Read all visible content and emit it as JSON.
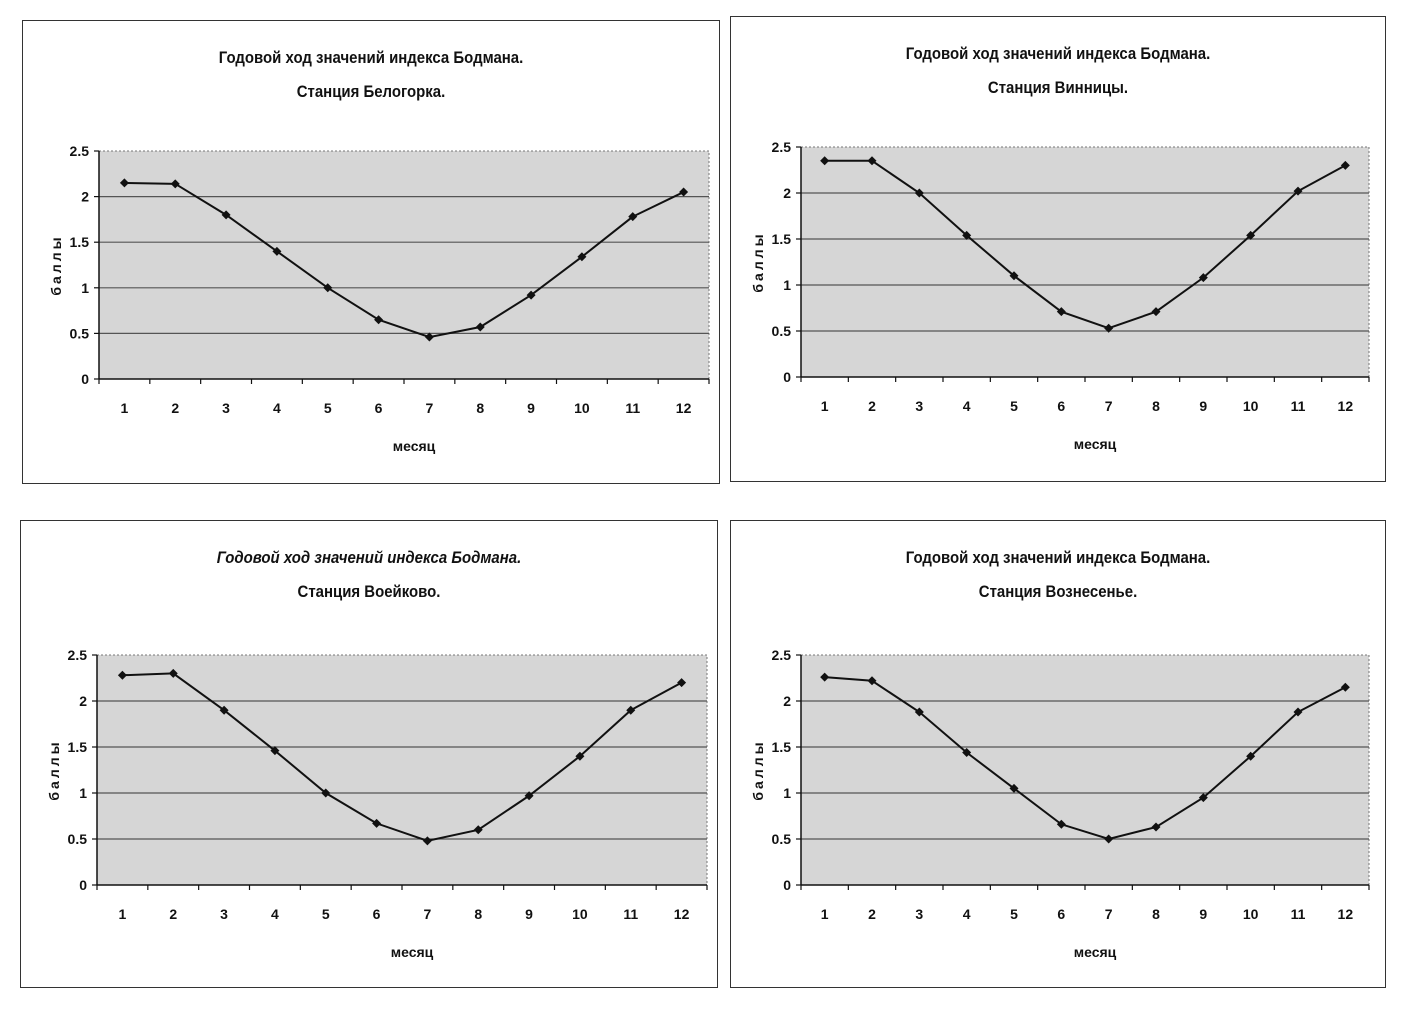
{
  "chart_data": [
    {
      "type": "line",
      "title": [
        "Годовой ход значений индекса Бодмана.",
        "Станция Белогорка."
      ],
      "xlabel": "месяц",
      "ylabel": "баллы",
      "categories": [
        "1",
        "2",
        "3",
        "4",
        "5",
        "6",
        "7",
        "8",
        "9",
        "10",
        "11",
        "12"
      ],
      "values": [
        2.15,
        2.14,
        1.8,
        1.4,
        1.0,
        0.65,
        0.46,
        0.57,
        0.92,
        1.34,
        1.78,
        2.05
      ],
      "yticks": [
        "0",
        "0.5",
        "1",
        "1.5",
        "2",
        "2.5"
      ],
      "ylim": [
        0,
        2.5
      ]
    },
    {
      "type": "line",
      "title": [
        "Годовой ход значений индекса Бодмана.",
        "Станция Винницы."
      ],
      "xlabel": "месяц",
      "ylabel": "баллы",
      "categories": [
        "1",
        "2",
        "3",
        "4",
        "5",
        "6",
        "7",
        "8",
        "9",
        "10",
        "11",
        "12"
      ],
      "values": [
        2.35,
        2.35,
        2.0,
        1.54,
        1.1,
        0.71,
        0.53,
        0.71,
        1.08,
        1.54,
        2.02,
        2.3
      ],
      "yticks": [
        "0",
        "0.5",
        "1",
        "1.5",
        "2",
        "2.5"
      ],
      "ylim": [
        0,
        2.5
      ]
    },
    {
      "type": "line",
      "title": [
        "Годовой ход значений индекса Бодмана.",
        "Станция Воейково."
      ],
      "xlabel": "месяц",
      "ylabel": "баллы",
      "categories": [
        "1",
        "2",
        "3",
        "4",
        "5",
        "6",
        "7",
        "8",
        "9",
        "10",
        "11",
        "12"
      ],
      "values": [
        2.28,
        2.3,
        1.9,
        1.46,
        1.0,
        0.67,
        0.48,
        0.6,
        0.97,
        1.4,
        1.9,
        2.2
      ],
      "yticks": [
        "0",
        "0.5",
        "1",
        "1.5",
        "2",
        "2.5"
      ],
      "ylim": [
        0,
        2.5
      ]
    },
    {
      "type": "line",
      "title": [
        "Годовой ход значений индекса Бодмана.",
        "Станция Вознесенье."
      ],
      "xlabel": "месяц",
      "ylabel": "баллы",
      "categories": [
        "1",
        "2",
        "3",
        "4",
        "5",
        "6",
        "7",
        "8",
        "9",
        "10",
        "11",
        "12"
      ],
      "values": [
        2.26,
        2.22,
        1.88,
        1.44,
        1.05,
        0.66,
        0.5,
        0.63,
        0.95,
        1.4,
        1.88,
        2.15
      ],
      "yticks": [
        "0",
        "0.5",
        "1",
        "1.5",
        "2",
        "2.5"
      ],
      "ylim": [
        0,
        2.5
      ]
    }
  ],
  "colors": {
    "plot_bg": "#d6d6d6",
    "line": "#111111",
    "grid": "#555555"
  }
}
